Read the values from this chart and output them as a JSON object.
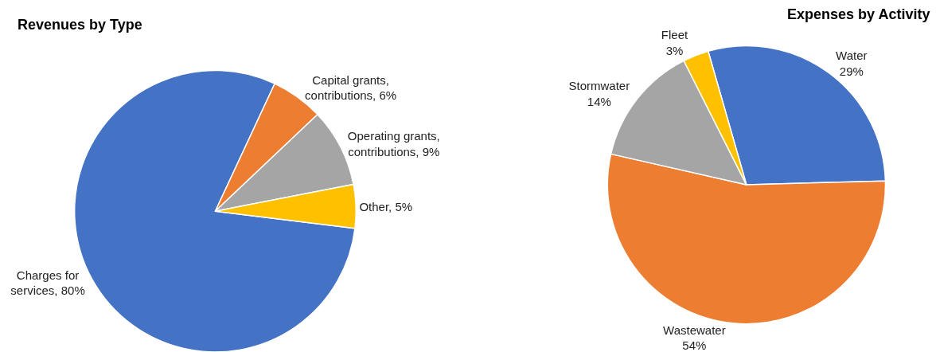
{
  "chart_data": [
    {
      "type": "pie",
      "title": "Revenues by Type",
      "categories": [
        "Charges for services",
        "Capital grants, contributions",
        "Operating grants, contributions",
        "Other"
      ],
      "values": [
        80,
        6,
        9,
        5
      ],
      "value_labels": [
        "80%",
        "6%",
        "9%",
        "5%"
      ],
      "colors": [
        "#4472c4",
        "#ed7d31",
        "#a5a5a5",
        "#ffc000"
      ]
    },
    {
      "type": "pie",
      "title": "Expenses by Activity",
      "categories": [
        "Water",
        "Wastewater",
        "Stormwater",
        "Fleet"
      ],
      "values": [
        29,
        54,
        14,
        3
      ],
      "value_labels": [
        "29%",
        "54%",
        "14%",
        "3%"
      ],
      "colors": [
        "#4472c4",
        "#ed7d31",
        "#a5a5a5",
        "#ffc000"
      ]
    }
  ]
}
